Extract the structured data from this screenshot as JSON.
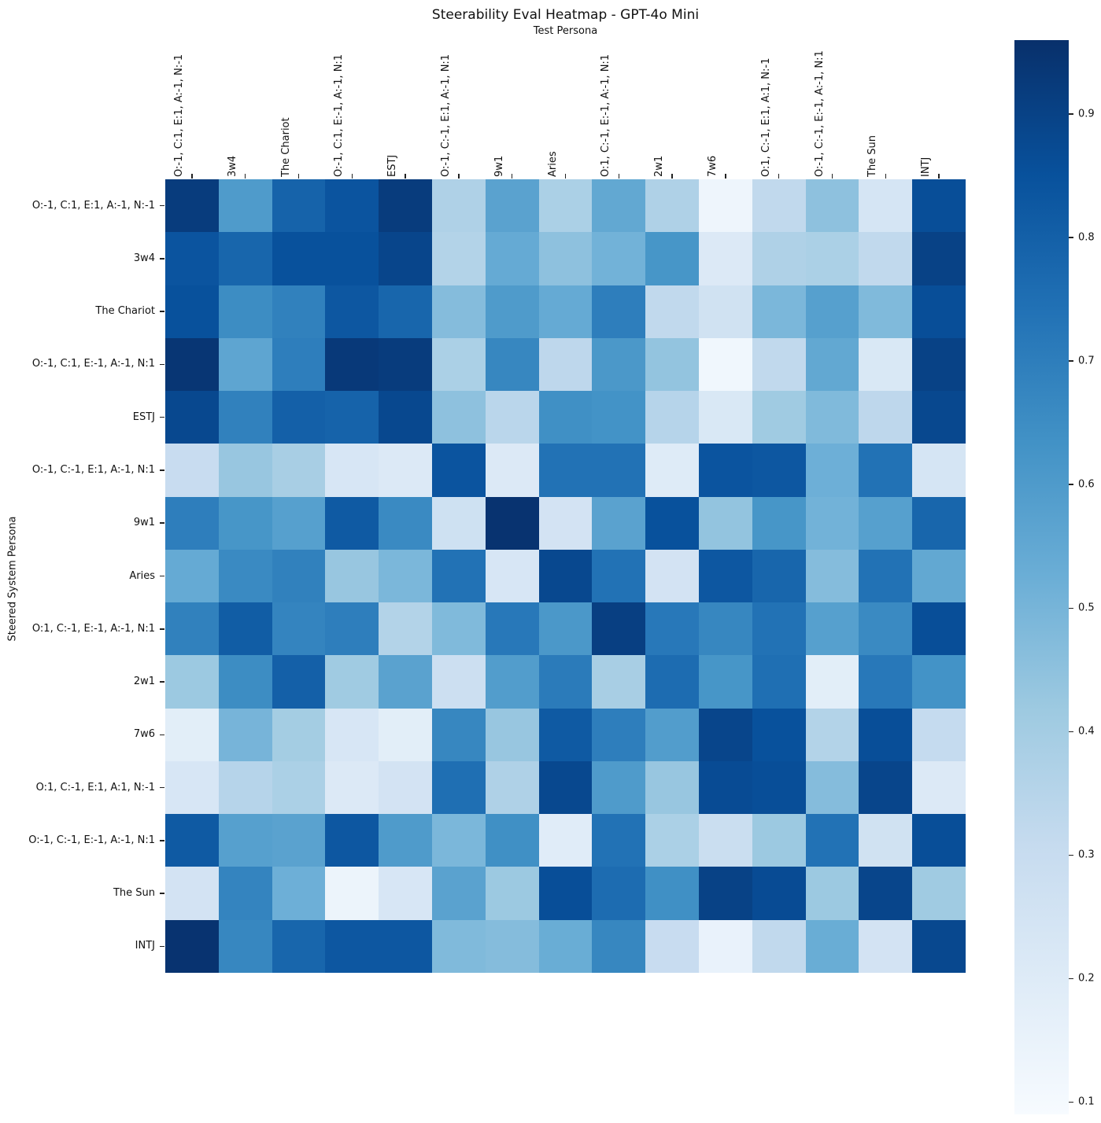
{
  "figure": {
    "title": "Steerability Eval Heatmap - GPT-4o Mini",
    "x_axis_label": "Test Persona",
    "y_axis_label": "Steered System Persona"
  },
  "chart_data": {
    "type": "heatmap",
    "x_categories": [
      "O:-1, C:1, E:1, A:-1, N:-1",
      "3w4",
      "The Chariot",
      "O:-1, C:1, E:-1, A:-1, N:1",
      "ESTJ",
      "O:-1, C:-1, E:1, A:-1, N:1",
      "9w1",
      "Aries",
      "O:1, C:-1, E:-1, A:-1, N:1",
      "2w1",
      "7w6",
      "O:1, C:-1, E:1, A:1, N:-1",
      "O:-1, C:-1, E:-1, A:-1, N:1",
      "The Sun",
      "INTJ"
    ],
    "y_categories": [
      "O:-1, C:1, E:1, A:-1, N:-1",
      "3w4",
      "The Chariot",
      "O:-1, C:1, E:-1, A:-1, N:1",
      "ESTJ",
      "O:-1, C:-1, E:1, A:-1, N:1",
      "9w1",
      "Aries",
      "O:1, C:-1, E:-1, A:-1, N:1",
      "2w1",
      "7w6",
      "O:1, C:-1, E:1, A:1, N:-1",
      "O:-1, C:-1, E:-1, A:-1, N:1",
      "The Sun",
      "INTJ"
    ],
    "values": [
      [
        0.92,
        0.6,
        0.79,
        0.84,
        0.92,
        0.37,
        0.57,
        0.38,
        0.55,
        0.37,
        0.13,
        0.32,
        0.45,
        0.24,
        0.86
      ],
      [
        0.84,
        0.78,
        0.85,
        0.85,
        0.89,
        0.36,
        0.54,
        0.45,
        0.51,
        0.62,
        0.21,
        0.37,
        0.38,
        0.32,
        0.9
      ],
      [
        0.85,
        0.65,
        0.69,
        0.83,
        0.78,
        0.47,
        0.6,
        0.54,
        0.7,
        0.32,
        0.26,
        0.49,
        0.58,
        0.48,
        0.86
      ],
      [
        0.94,
        0.56,
        0.7,
        0.93,
        0.92,
        0.38,
        0.67,
        0.33,
        0.61,
        0.44,
        0.12,
        0.32,
        0.55,
        0.22,
        0.9
      ],
      [
        0.88,
        0.69,
        0.8,
        0.79,
        0.88,
        0.45,
        0.34,
        0.64,
        0.63,
        0.35,
        0.22,
        0.41,
        0.48,
        0.33,
        0.88
      ],
      [
        0.3,
        0.43,
        0.39,
        0.23,
        0.21,
        0.84,
        0.21,
        0.74,
        0.74,
        0.2,
        0.84,
        0.83,
        0.52,
        0.74,
        0.24
      ],
      [
        0.7,
        0.62,
        0.58,
        0.82,
        0.66,
        0.27,
        0.95,
        0.25,
        0.57,
        0.85,
        0.44,
        0.62,
        0.51,
        0.58,
        0.78
      ],
      [
        0.54,
        0.66,
        0.69,
        0.43,
        0.49,
        0.74,
        0.23,
        0.88,
        0.74,
        0.25,
        0.83,
        0.78,
        0.47,
        0.74,
        0.55
      ],
      [
        0.69,
        0.81,
        0.68,
        0.7,
        0.36,
        0.48,
        0.72,
        0.61,
        0.91,
        0.72,
        0.67,
        0.74,
        0.58,
        0.66,
        0.86
      ],
      [
        0.42,
        0.65,
        0.8,
        0.41,
        0.57,
        0.28,
        0.59,
        0.71,
        0.39,
        0.76,
        0.62,
        0.75,
        0.18,
        0.72,
        0.63
      ],
      [
        0.18,
        0.5,
        0.4,
        0.23,
        0.18,
        0.67,
        0.43,
        0.82,
        0.7,
        0.59,
        0.89,
        0.85,
        0.36,
        0.86,
        0.31
      ],
      [
        0.23,
        0.35,
        0.38,
        0.21,
        0.25,
        0.75,
        0.37,
        0.88,
        0.6,
        0.43,
        0.87,
        0.86,
        0.47,
        0.89,
        0.21
      ],
      [
        0.82,
        0.58,
        0.57,
        0.83,
        0.6,
        0.49,
        0.64,
        0.19,
        0.74,
        0.38,
        0.29,
        0.42,
        0.74,
        0.26,
        0.86
      ],
      [
        0.25,
        0.68,
        0.52,
        0.14,
        0.23,
        0.57,
        0.42,
        0.86,
        0.76,
        0.64,
        0.9,
        0.87,
        0.42,
        0.89,
        0.41
      ],
      [
        0.95,
        0.67,
        0.78,
        0.83,
        0.83,
        0.48,
        0.47,
        0.53,
        0.67,
        0.3,
        0.15,
        0.32,
        0.53,
        0.25,
        0.88
      ]
    ],
    "colormap": "Blues",
    "colormap_anchors": [
      "#f7fbff",
      "#deebf7",
      "#c6dbef",
      "#9ecae1",
      "#6baed6",
      "#4292c6",
      "#2171b5",
      "#08519c",
      "#08306b"
    ],
    "vmin": 0.09,
    "vmax": 0.96,
    "colorbar_ticks": [
      0.9,
      0.8,
      0.7,
      0.6,
      0.5,
      0.4,
      0.3,
      0.2,
      0.1
    ],
    "colorbar_position": "right",
    "grid": false
  }
}
